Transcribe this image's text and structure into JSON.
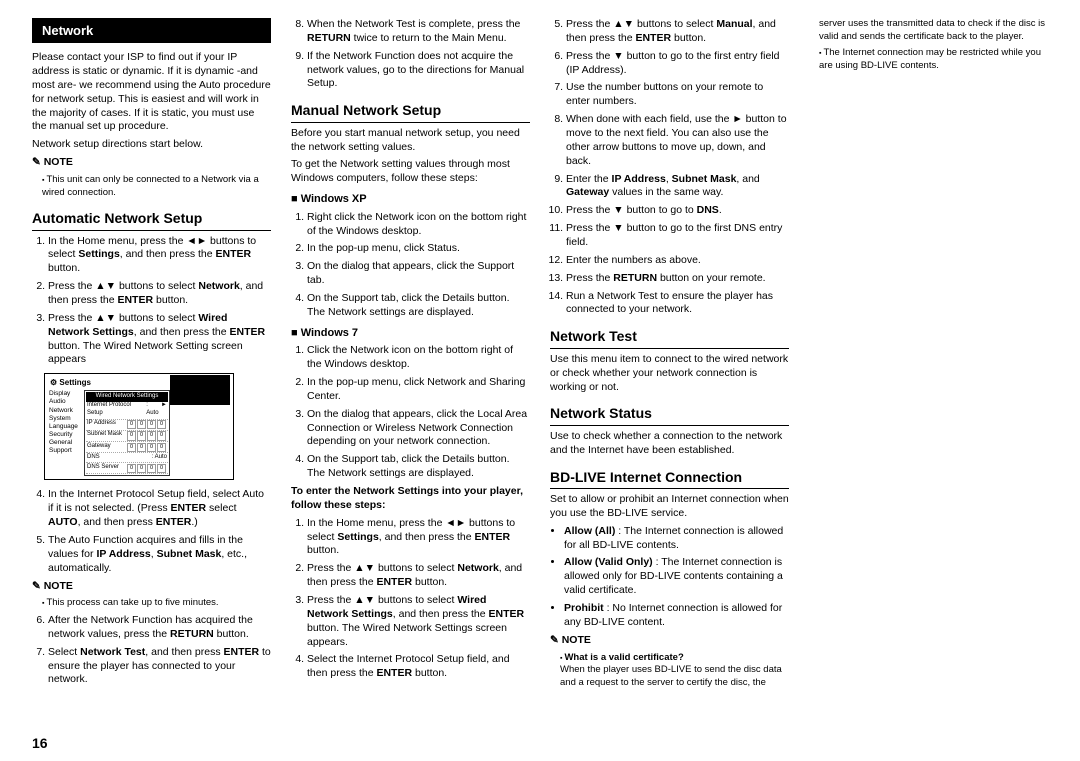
{
  "pageNumber": "16",
  "tab": "Network",
  "intro1": "Please contact your ISP to find out if your IP address is static or dynamic. If it is dynamic -and most are- we recommend using the Auto procedure for network setup. This is easiest and will work in the majority of cases. If it is static, you must use the manual set up procedure.",
  "intro2": "Network setup directions start below.",
  "note1head": "NOTE",
  "note1": "This unit can only be connected to a Network via a wired connection.",
  "h_auto": "Automatic Network Setup",
  "auto": [
    "In the Home menu, press the ◄► buttons to select <b>Settings</b>, and then press the <b>ENTER</b> button.",
    "Press the ▲▼ buttons to select <b>Network</b>, and then press the <b>ENTER</b> button.",
    "Press the ▲▼ buttons to select <b>Wired Network Settings</b>, and then press the <b>ENTER</b> button. The Wired Network Setting screen appears"
  ],
  "settings": {
    "title": "Settings",
    "side": [
      "Display",
      "Audio",
      "Network",
      "System",
      "Language",
      "Security",
      "General",
      "Support"
    ],
    "panelTitle": "Wired Network Settings",
    "row1k": "Internet Protocol Setup",
    "row1v": ": Auto",
    "row2k": "IP Address",
    "row3k": "Subnet Mask",
    "row4k": "Gateway",
    "row5k": "DNS",
    "row5v": ": Auto",
    "row6k": "DNS Server"
  },
  "auto4": "In the Internet Protocol Setup field, select Auto if it is not selected. (Press <b>ENTER</b> select <b>AUTO</b>, and then press <b>ENTER</b>.)",
  "auto5": "The Auto Function acquires and fills in the values for <b>IP Address</b>, <b>Subnet Mask</b>, etc., automatically.",
  "note2head": "NOTE",
  "note2": "This process can take up to five minutes.",
  "auto6": "After the Network Function has acquired the network values, press the <b>RETURN</b> button.",
  "auto7": "Select <b>Network Test</b>, and then press <b>ENTER</b> to ensure the player has connected to your network.",
  "auto8": "When the Network Test is complete, press the <b>RETURN</b> twice to return to the Main Menu.",
  "auto9": "If the Network Function does not acquire the network values, go to the directions for Manual Setup.",
  "h_manual": "Manual Network Setup",
  "manual_p1": "Before you start manual network setup, you need the network setting values.",
  "manual_p2": "To get the Network setting values through most Windows computers, follow these steps:",
  "winxp_h": "Windows XP",
  "winxp": [
    "Right click the Network icon on the bottom right of the Windows desktop.",
    "In the pop-up menu, click Status.",
    "On the dialog that appears, click the Support tab.",
    "On the Support tab, click the Details button. The Network settings are displayed."
  ],
  "win7_h": "Windows 7",
  "win7": [
    "Click the Network icon on the bottom right of the Windows desktop.",
    "In the pop-up menu, click Network and Sharing Center.",
    "On the dialog that appears, click the Local Area Connection or Wireless Network Connection depending on your network connection.",
    "On the Support tab, click the Details button. The Network settings are displayed."
  ],
  "enter_h": "To enter the Network Settings into your player, follow these steps:",
  "enter": [
    "In the Home menu, press the ◄► buttons to select <b>Settings</b>, and then press the <b>ENTER</b> button.",
    "Press the ▲▼ buttons to select <b>Network</b>, and then press the <b>ENTER</b> button.",
    "Press the ▲▼ buttons to select <b>Wired Network Settings</b>, and then press the <b>ENTER</b> button. The Wired Network Settings screen appears.",
    "Select the Internet Protocol Setup field, and then press the <b>ENTER</b> button.",
    "Press the ▲▼ buttons to select <b>Manual</b>, and then press the <b>ENTER</b> button.",
    "Press the ▼ button to go to the first entry field (IP Address).",
    "Use the number buttons on your remote to enter numbers.",
    "When done with each field, use the ► button to move to the next field. You can also use the other arrow buttons to move up, down, and back.",
    "Enter the <b>IP Address</b>, <b>Subnet Mask</b>, and <b>Gateway</b> values in the same way.",
    "Press the ▼ button to go to <b>DNS</b>.",
    "Press the ▼ button to go to the first DNS entry field.",
    "Enter the numbers as above.",
    "Press the <b>RETURN</b> button on your remote.",
    "Run a Network Test to ensure the player has connected to your network."
  ],
  "h_test": "Network Test",
  "test_p": "Use this menu item to connect to the wired network or check whether your network connection is working or not.",
  "h_status": "Network Status",
  "status_p": "Use to check whether a connection to the network and the Internet have been established.",
  "h_bdlive": "BD-LIVE Internet Connection",
  "bdlive_p": "Set to allow or prohibit an Internet connection when you use the BD-LIVE service.",
  "bdlive_list": [
    "<b>Allow (All)</b> : The Internet connection is allowed for all BD-LIVE contents.",
    "<b>Allow (Valid Only)</b> : The Internet connection is allowed only for BD-LIVE contents containing a valid certificate.",
    "<b>Prohibit</b> : No Internet connection is allowed for any BD-LIVE content."
  ],
  "note3head": "NOTE",
  "note3a_h": "What is a valid certificate?",
  "note3a": "When the player uses BD-LIVE to send the disc data and a request to the server to certify the disc, the server uses the transmitted data to check if the disc is valid and sends the certificate back to the player.",
  "note3b": "The Internet connection may be restricted while you are using BD-LIVE contents."
}
